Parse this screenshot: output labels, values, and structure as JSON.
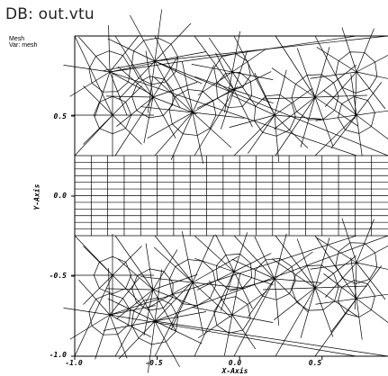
{
  "window": {
    "db_title": "DB: out.vtu"
  },
  "plot": {
    "mesh_label": "Mesh",
    "var_label": "Var: mesh",
    "x_axis_title": "X-Axis",
    "y_axis_title": "Y-Axis",
    "x_ticks": [
      "-1.0",
      "-0.5",
      "0.0",
      "0.5"
    ],
    "y_ticks": [
      "0.5",
      "0.0",
      "-0.5",
      "-1.0"
    ],
    "line_color": "#000000",
    "background": "#ffffff",
    "x_range": [
      -1.0,
      0.9
    ],
    "y_range": [
      -1.0,
      1.0
    ]
  }
}
